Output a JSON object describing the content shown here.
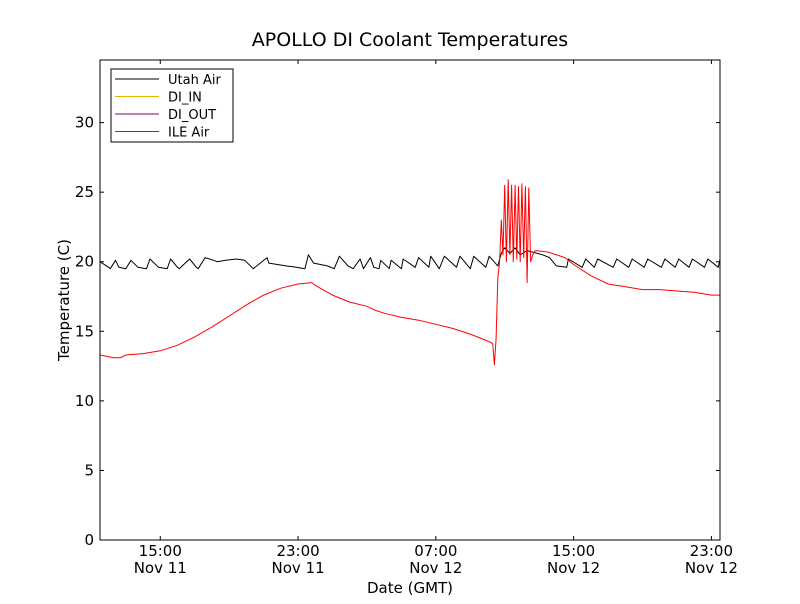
{
  "chart_data": {
    "type": "line",
    "title": "APOLLO DI Coolant Temperatures",
    "xlabel": "Date (GMT)",
    "ylabel": "Temperature (C)",
    "xlim_hours": [
      11.5,
      47.5
    ],
    "ylim": [
      0,
      34.5
    ],
    "yticks": [
      0,
      5,
      10,
      15,
      20,
      25,
      30
    ],
    "xticks": [
      {
        "hour": 15,
        "time": "15:00",
        "date": "Nov 11"
      },
      {
        "hour": 23,
        "time": "23:00",
        "date": "Nov 11"
      },
      {
        "hour": 31,
        "time": "07:00",
        "date": "Nov 12"
      },
      {
        "hour": 39,
        "time": "15:00",
        "date": "Nov 12"
      },
      {
        "hour": 47,
        "time": "23:00",
        "date": "Nov 12"
      }
    ],
    "legend_position": "top-left",
    "series": [
      {
        "name": "Utah Air",
        "color": "#000000",
        "x": [
          11.5,
          12.0,
          12.1,
          12.4,
          12.6,
          13.0,
          13.3,
          13.7,
          14.2,
          14.4,
          14.9,
          15.4,
          15.6,
          16.0,
          16.1,
          16.7,
          17.1,
          17.2,
          17.6,
          18.1,
          18.3,
          18.8,
          19.4,
          19.9,
          20.4,
          21.2,
          21.3,
          21.8,
          22.3,
          22.9,
          23.4,
          23.6,
          23.9,
          24.7,
          25.1,
          25.4,
          25.9,
          26.2,
          26.6,
          26.8,
          27.2,
          27.4,
          27.7,
          27.8,
          28.3,
          28.4,
          29.0,
          29.1,
          29.8,
          30.0,
          30.6,
          30.7,
          31.2,
          31.5,
          32.2,
          32.4,
          33.0,
          33.2,
          33.9,
          34.1,
          34.6,
          34.8,
          35.0,
          35.3,
          35.6,
          35.9,
          36.3,
          37.2,
          37.6,
          38.0,
          38.6,
          38.7,
          39.5,
          39.7,
          40.2,
          40.4,
          41.3,
          41.5,
          42.2,
          42.4,
          43.1,
          43.3,
          44.1,
          44.3,
          44.9,
          45.1,
          45.7,
          45.9,
          46.6,
          46.8,
          47.4,
          47.5
        ],
        "y": [
          20.0,
          19.6,
          19.5,
          20.1,
          19.6,
          19.5,
          20.1,
          19.6,
          19.5,
          20.2,
          19.6,
          19.5,
          20.2,
          19.6,
          19.5,
          20.2,
          19.6,
          19.5,
          20.3,
          20.1,
          20.0,
          20.1,
          20.2,
          20.1,
          19.5,
          20.3,
          19.9,
          19.8,
          19.7,
          19.6,
          19.5,
          20.5,
          19.9,
          19.7,
          19.5,
          20.4,
          19.7,
          19.5,
          20.2,
          19.5,
          20.3,
          19.6,
          19.5,
          20.1,
          19.5,
          20.1,
          19.5,
          20.2,
          19.6,
          20.3,
          19.6,
          20.4,
          19.5,
          20.4,
          19.6,
          20.4,
          19.5,
          20.4,
          19.6,
          20.4,
          19.7,
          20.6,
          21.0,
          20.6,
          21.0,
          20.5,
          20.8,
          20.5,
          20.3,
          19.7,
          19.6,
          20.2,
          19.6,
          20.2,
          19.6,
          20.2,
          19.6,
          20.2,
          19.6,
          20.2,
          19.6,
          20.2,
          19.6,
          20.2,
          19.6,
          20.2,
          19.6,
          20.2,
          19.6,
          20.2,
          19.6,
          20.2
        ]
      },
      {
        "name": "DI_IN",
        "color": "#e8b400",
        "x": [],
        "y": []
      },
      {
        "name": "DI_OUT",
        "color": "#800080",
        "x": [],
        "y": []
      },
      {
        "name": "ILE Air",
        "color": "#ff0000",
        "x": [
          11.5,
          12.3,
          12.7,
          13.0,
          14.0,
          15.0,
          16.0,
          17.0,
          18.0,
          19.0,
          20.0,
          21.0,
          22.0,
          23.0,
          23.8,
          24.0,
          25.0,
          26.0,
          27.0,
          27.5,
          28.0,
          29.0,
          30.0,
          31.0,
          32.0,
          33.0,
          34.0,
          34.2,
          34.3,
          34.4,
          34.5,
          34.6,
          34.7,
          34.8,
          34.9,
          35.0,
          35.1,
          35.2,
          35.3,
          35.4,
          35.5,
          35.6,
          35.7,
          35.8,
          35.9,
          36.0,
          36.1,
          36.2,
          36.3,
          36.4,
          36.5,
          36.6,
          36.7,
          36.8,
          37.5,
          38.5,
          39.0,
          40.0,
          41.0,
          42.0,
          43.0,
          44.0,
          45.0,
          46.0,
          47.0,
          47.5
        ],
        "y": [
          13.3,
          13.1,
          13.1,
          13.3,
          13.4,
          13.6,
          14.0,
          14.6,
          15.3,
          16.1,
          16.9,
          17.6,
          18.1,
          18.4,
          18.5,
          18.3,
          17.6,
          17.1,
          16.8,
          16.5,
          16.3,
          16.0,
          15.8,
          15.5,
          15.2,
          14.8,
          14.3,
          14.2,
          14.1,
          12.6,
          14.5,
          18.8,
          20.0,
          23.0,
          20.5,
          25.5,
          20.0,
          25.9,
          20.5,
          25.5,
          20.0,
          25.5,
          20.2,
          25.4,
          20.0,
          25.6,
          20.3,
          25.4,
          18.5,
          25.3,
          20.0,
          20.4,
          20.7,
          20.8,
          20.7,
          20.3,
          19.8,
          19.0,
          18.4,
          18.2,
          18.0,
          18.0,
          17.9,
          17.8,
          17.6,
          17.6
        ]
      }
    ]
  }
}
